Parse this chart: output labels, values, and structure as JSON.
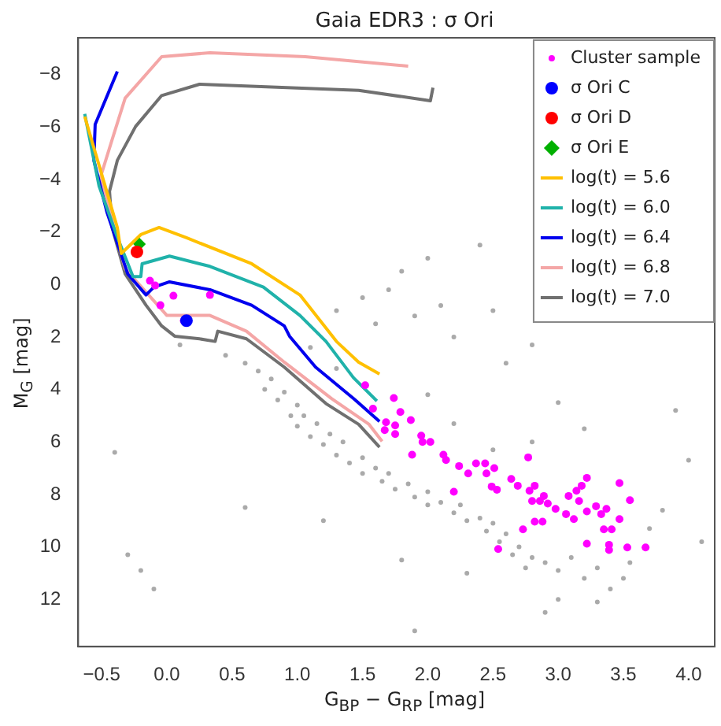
{
  "chart_data": {
    "type": "scatter",
    "title": "Gaia EDR3 : σ Ori",
    "xlabel": "G$_{BP}$ − G$_{RP}$ [mag]",
    "ylabel": "M$_{G}$ [mag]",
    "xlim": [
      -0.68,
      4.2
    ],
    "ylim": [
      13.8,
      -9.4
    ],
    "xticks": [
      -0.5,
      {
        "value": 0,
        "label": "0.0"
      },
      0.5,
      {
        "value": 1,
        "label": "1.0"
      },
      1.5,
      {
        "value": 2,
        "label": "2.0"
      },
      2.5,
      {
        "value": 3,
        "label": "3.0"
      },
      3.5,
      {
        "value": 4,
        "label": "4.0"
      }
    ],
    "yticks": [
      -8,
      -6,
      -4,
      -2,
      0,
      2,
      4,
      6,
      8,
      10,
      12
    ],
    "grid": false,
    "legend": "top right",
    "series": [
      {
        "marker": "circle",
        "color": "#aaaaaa",
        "x": [
          0.6,
          0.7,
          0.75,
          0.8,
          0.85,
          0.9,
          0.95,
          1.0,
          1.0,
          1.05,
          1.1,
          1.15,
          1.2,
          1.25,
          1.3,
          1.35,
          1.4,
          1.5,
          1.5,
          1.6,
          1.65,
          1.7,
          1.75,
          1.85,
          1.9,
          2.0,
          2.0,
          2.1,
          2.2,
          2.25,
          2.3,
          2.4,
          2.45,
          2.5,
          2.55,
          2.6,
          2.65,
          2.7,
          2.75,
          2.8,
          2.9,
          3.0,
          3.1,
          3.2,
          3.3,
          3.4,
          3.5,
          3.55,
          1.3,
          1.5,
          1.6,
          1.7,
          1.8,
          1.9,
          2.0,
          2.1,
          2.2,
          2.4,
          2.5,
          2.6,
          2.8,
          3.0,
          3.2,
          3.9,
          4.1,
          4.0,
          3.8,
          3.7,
          2.2,
          2.5,
          1.1,
          1.3,
          2.8,
          2.0,
          -0.3,
          -0.1,
          -0.2,
          0.1,
          0.45,
          3.3,
          2.9,
          1.9,
          0.6,
          1.8,
          1.2,
          -0.4,
          2.3,
          3.0
        ],
        "values": [
          3.0,
          3.3,
          4.0,
          3.6,
          4.4,
          4.1,
          5.0,
          4.6,
          5.4,
          5.0,
          5.8,
          5.3,
          6.1,
          5.7,
          6.5,
          6.0,
          6.8,
          6.6,
          7.2,
          7.0,
          7.5,
          7.2,
          7.8,
          7.6,
          8.1,
          7.9,
          8.4,
          8.3,
          8.7,
          8.4,
          9.0,
          8.9,
          9.4,
          9.1,
          9.8,
          9.5,
          10.3,
          10.0,
          10.8,
          10.4,
          10.6,
          10.9,
          10.4,
          11.2,
          10.8,
          11.6,
          11.2,
          10.6,
          1.0,
          0.5,
          1.5,
          0.2,
          -0.5,
          1.2,
          -1.0,
          0.8,
          2.0,
          -1.5,
          1.0,
          3.0,
          2.3,
          4.5,
          5.5,
          4.8,
          9.8,
          6.7,
          8.6,
          9.3,
          5.3,
          6.3,
          2.4,
          3.2,
          6.0,
          4.2,
          10.3,
          11.6,
          10.9,
          2.3,
          2.7,
          12.1,
          12.5,
          13.2,
          8.5,
          10.5,
          9.0,
          6.4,
          11.0,
          12.0
        ]
      },
      {
        "type": "scatter",
        "name": "Cluster sample",
        "marker": "circle",
        "color": "#ff00ff",
        "x": [
          -0.13,
          -0.09,
          -0.05,
          0.05,
          0.33,
          0.13,
          1.52,
          1.74,
          1.58,
          1.79,
          1.68,
          1.87,
          1.75,
          1.67,
          1.75,
          1.95,
          1.96,
          2.02,
          1.88,
          2.12,
          2.14,
          2.24,
          2.31,
          2.37,
          2.44,
          2.51,
          2.45,
          2.77,
          2.2,
          2.49,
          2.53,
          2.64,
          2.69,
          2.78,
          2.82,
          2.8,
          2.86,
          2.89,
          2.92,
          2.82,
          2.88,
          2.98,
          3.06,
          3.08,
          3.14,
          3.18,
          3.22,
          3.16,
          3.22,
          3.12,
          3.29,
          3.33,
          3.37,
          3.35,
          3.41,
          3.47,
          3.47,
          3.55,
          2.73,
          3.22,
          3.39,
          3.39,
          3.53,
          3.67,
          2.54
        ],
        "values": [
          -0.14,
          0.04,
          0.79,
          0.43,
          0.4,
          1.38,
          3.84,
          4.33,
          4.73,
          4.86,
          5.25,
          5.17,
          5.37,
          5.55,
          5.7,
          5.76,
          6.0,
          6.0,
          6.49,
          6.49,
          6.69,
          6.92,
          7.2,
          6.82,
          6.82,
          7.0,
          7.2,
          6.59,
          7.9,
          7.7,
          7.82,
          7.41,
          7.67,
          7.86,
          7.67,
          8.25,
          8.25,
          8.06,
          8.35,
          9.04,
          9.04,
          8.55,
          8.75,
          8.06,
          7.86,
          7.67,
          7.37,
          8.25,
          8.65,
          8.94,
          8.45,
          8.75,
          8.55,
          9.33,
          9.33,
          8.94,
          7.57,
          8.22,
          9.33,
          9.88,
          9.92,
          10.12,
          10.02,
          10.02,
          10.08
        ]
      },
      {
        "type": "scatter",
        "name": "σ Ori C",
        "marker": "circle",
        "color": "#0000ff",
        "x": [
          0.15
        ],
        "values": [
          1.38
        ]
      },
      {
        "type": "scatter",
        "name": "σ Ori D",
        "marker": "circle",
        "color": "#ff0000",
        "x": [
          -0.23
        ],
        "values": [
          -1.24
        ]
      },
      {
        "type": "scatter",
        "name": "σ Ori E",
        "marker": "diamond",
        "color": "#00b000",
        "x": [
          -0.21
        ],
        "values": [
          -1.54
        ]
      },
      {
        "type": "line",
        "name": "log(t) = 5.6",
        "color": "#ffc000",
        "x": [
          -0.63,
          -0.38,
          -0.35,
          -0.2,
          -0.06,
          0.15,
          0.65,
          1.02,
          1.3,
          1.47,
          1.63
        ],
        "values": [
          -6.4,
          -2.17,
          -1.18,
          -1.9,
          -2.17,
          -1.78,
          -0.79,
          0.4,
          2.17,
          2.96,
          3.41
        ]
      },
      {
        "type": "line",
        "name": "log(t) = 6.0",
        "color": "#20b2aa",
        "x": [
          -0.63,
          -0.52,
          -0.38,
          -0.26,
          -0.2,
          -0.19,
          0.02,
          0.33,
          0.74,
          1.02,
          1.22,
          1.43,
          1.61
        ],
        "values": [
          -6.5,
          -3.75,
          -1.8,
          -0.3,
          -0.3,
          -0.79,
          -1.08,
          -0.69,
          0.1,
          1.18,
          2.17,
          3.55,
          4.44
        ]
      },
      {
        "type": "line",
        "name": "log(t) = 6.4",
        "color": "#0000ee",
        "x": [
          -0.38,
          -0.55,
          -0.56,
          -0.46,
          -0.3,
          -0.16,
          -0.1,
          0.02,
          0.33,
          0.65,
          0.9,
          0.94,
          1.14,
          1.43,
          1.63
        ],
        "values": [
          -8.12,
          -6.1,
          -4.73,
          -2.76,
          -0.4,
          0.4,
          0.1,
          -0.1,
          0.2,
          0.79,
          1.58,
          1.97,
          3.15,
          4.34,
          5.22
        ]
      },
      {
        "type": "line",
        "name": "log(t) = 6.8",
        "color": "#f4a6a6",
        "x": [
          1.85,
          1.06,
          0.33,
          -0.04,
          -0.32,
          -0.42,
          -0.51,
          -0.32,
          0.0,
          0.33,
          0.61,
          0.9,
          1.26,
          1.55,
          1.65
        ],
        "values": [
          -8.32,
          -8.68,
          -8.83,
          -8.68,
          -7.1,
          -5.52,
          -4.08,
          -0.6,
          1.18,
          1.18,
          1.78,
          2.96,
          4.34,
          5.33,
          5.98
        ]
      },
      {
        "type": "line",
        "name": "log(t) = 7.0",
        "color": "#707070",
        "x": [
          2.04,
          2.02,
          1.47,
          0.25,
          -0.04,
          -0.24,
          -0.38,
          -0.44,
          -0.42,
          -0.32,
          -0.16,
          -0.04,
          0.06,
          0.25,
          0.37,
          0.39,
          0.61,
          0.9,
          1.22,
          1.47,
          1.63
        ],
        "values": [
          -7.5,
          -7.0,
          -7.4,
          -7.63,
          -7.2,
          -6.02,
          -4.73,
          -3.55,
          -2.17,
          -0.4,
          0.79,
          1.58,
          1.97,
          2.07,
          2.17,
          1.78,
          2.07,
          3.15,
          4.54,
          5.33,
          6.2
        ]
      }
    ]
  }
}
